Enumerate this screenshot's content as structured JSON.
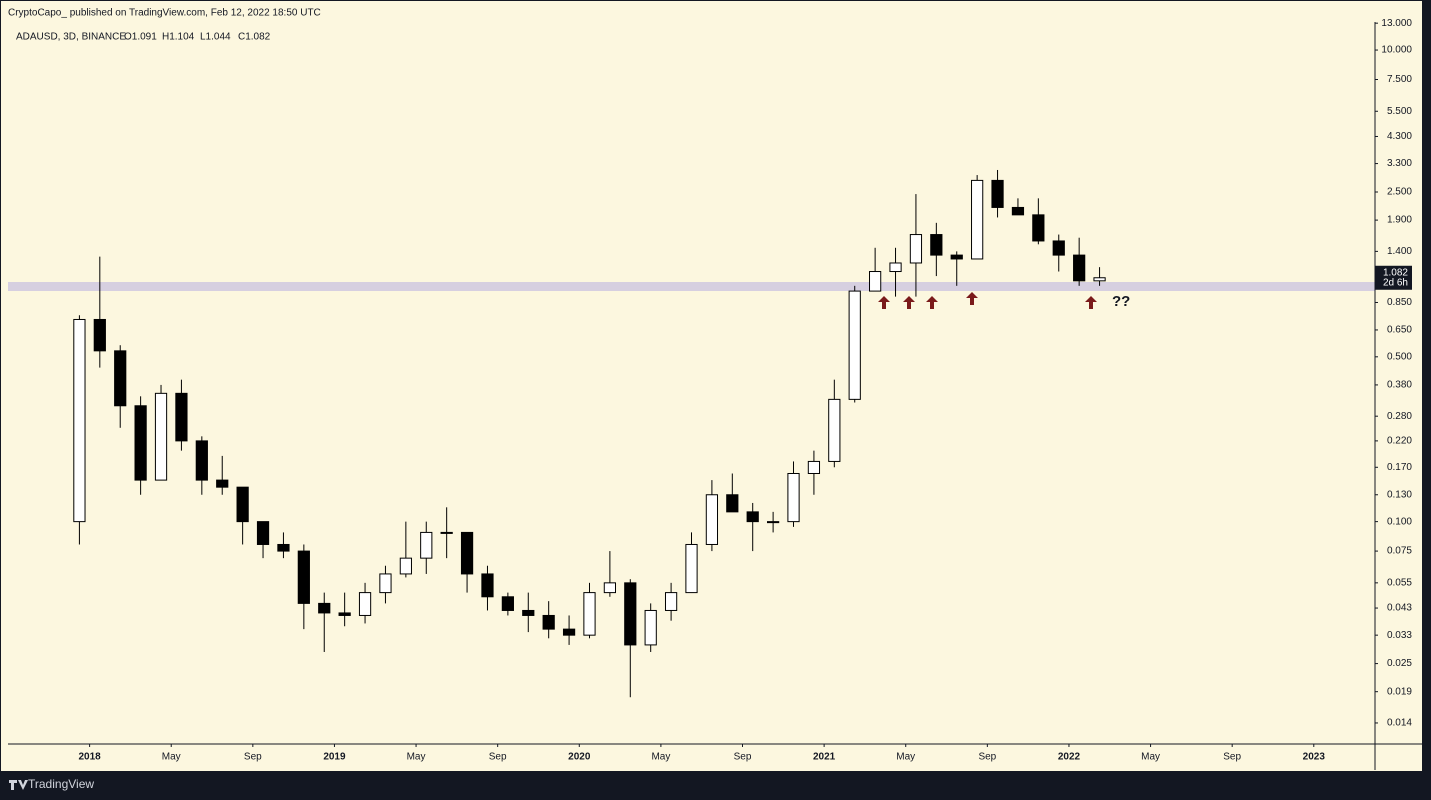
{
  "header": {
    "publisher": "CryptoCapo_ published on TradingView.com, Feb 12, 2022 18:50 UTC"
  },
  "chart_data": {
    "type": "candlestick",
    "legend": {
      "symbol": "ADAUSD, 3D, BINANCE",
      "open": "O1.091",
      "high": "H1.104",
      "low": "L1.044",
      "close": "C1.082"
    },
    "x": [
      "2017-12",
      "2018-01",
      "2018-02",
      "2018-03",
      "2018-04",
      "2018-05",
      "2018-06",
      "2018-07",
      "2018-08",
      "2018-09",
      "2018-10",
      "2018-11",
      "2018-12",
      "2019-01",
      "2019-02",
      "2019-03",
      "2019-04",
      "2019-05",
      "2019-06",
      "2019-07",
      "2019-08",
      "2019-09",
      "2019-10",
      "2019-11",
      "2019-12",
      "2020-01",
      "2020-02",
      "2020-03",
      "2020-04",
      "2020-05",
      "2020-06",
      "2020-07",
      "2020-08",
      "2020-09",
      "2020-10",
      "2020-11",
      "2020-12",
      "2021-01",
      "2021-02",
      "2021-03",
      "2021-04",
      "2021-05",
      "2021-06",
      "2021-07",
      "2021-08",
      "2021-09",
      "2021-10",
      "2021-11",
      "2021-12",
      "2022-01",
      "2022-02"
    ],
    "open": [
      0.1,
      0.72,
      0.53,
      0.31,
      0.15,
      0.35,
      0.22,
      0.15,
      0.14,
      0.1,
      0.08,
      0.075,
      0.045,
      0.041,
      0.04,
      0.05,
      0.06,
      0.07,
      0.09,
      0.09,
      0.06,
      0.048,
      0.042,
      0.04,
      0.035,
      0.033,
      0.05,
      0.055,
      0.03,
      0.042,
      0.05,
      0.08,
      0.13,
      0.11,
      0.1,
      0.1,
      0.16,
      0.18,
      0.33,
      0.95,
      1.15,
      1.25,
      1.65,
      1.35,
      1.3,
      2.8,
      2.15,
      2.0,
      1.55,
      1.35,
      1.05
    ],
    "high": [
      0.75,
      1.33,
      0.56,
      0.34,
      0.38,
      0.4,
      0.23,
      0.19,
      0.14,
      0.1,
      0.09,
      0.08,
      0.05,
      0.05,
      0.055,
      0.065,
      0.1,
      0.1,
      0.115,
      0.09,
      0.065,
      0.05,
      0.05,
      0.046,
      0.04,
      0.055,
      0.075,
      0.057,
      0.045,
      0.055,
      0.09,
      0.15,
      0.16,
      0.12,
      0.11,
      0.18,
      0.2,
      0.4,
      1.0,
      1.45,
      1.45,
      2.45,
      1.85,
      1.4,
      2.95,
      3.1,
      2.35,
      2.35,
      1.65,
      1.6,
      1.2
    ],
    "low": [
      0.08,
      0.45,
      0.25,
      0.13,
      0.15,
      0.2,
      0.13,
      0.13,
      0.08,
      0.07,
      0.07,
      0.035,
      0.028,
      0.036,
      0.037,
      0.045,
      0.058,
      0.06,
      0.07,
      0.05,
      0.042,
      0.04,
      0.034,
      0.032,
      0.03,
      0.032,
      0.048,
      0.018,
      0.028,
      0.038,
      0.05,
      0.075,
      0.11,
      0.075,
      0.09,
      0.095,
      0.13,
      0.17,
      0.32,
      0.95,
      0.9,
      0.9,
      1.1,
      1.0,
      1.3,
      1.95,
      2.05,
      1.5,
      1.15,
      1.0,
      1.0
    ],
    "close": [
      0.72,
      0.53,
      0.31,
      0.15,
      0.35,
      0.22,
      0.15,
      0.14,
      0.1,
      0.08,
      0.075,
      0.045,
      0.041,
      0.04,
      0.05,
      0.06,
      0.07,
      0.09,
      0.09,
      0.06,
      0.048,
      0.042,
      0.04,
      0.035,
      0.033,
      0.05,
      0.055,
      0.03,
      0.042,
      0.05,
      0.08,
      0.13,
      0.11,
      0.1,
      0.1,
      0.16,
      0.18,
      0.33,
      0.95,
      1.15,
      1.25,
      1.65,
      1.35,
      1.3,
      2.8,
      2.15,
      2.0,
      1.55,
      1.35,
      1.05,
      1.082
    ],
    "up_color": "#ffffff",
    "down_color": "#000000",
    "edge_color": "#000000",
    "log_scale": true,
    "grid": false,
    "xlim": [
      "2017-09",
      "2023-04"
    ],
    "xticks": [
      {
        "value": "2018-01",
        "label": "2018"
      },
      {
        "value": "2018-05",
        "label": "May"
      },
      {
        "value": "2018-09",
        "label": "Sep"
      },
      {
        "value": "2019-01",
        "label": "2019"
      },
      {
        "value": "2019-05",
        "label": "May"
      },
      {
        "value": "2019-09",
        "label": "Sep"
      },
      {
        "value": "2020-01",
        "label": "2020"
      },
      {
        "value": "2020-05",
        "label": "May"
      },
      {
        "value": "2020-09",
        "label": "Sep"
      },
      {
        "value": "2021-01",
        "label": "2021"
      },
      {
        "value": "2021-05",
        "label": "May"
      },
      {
        "value": "2021-09",
        "label": "Sep"
      },
      {
        "value": "2022-01",
        "label": "2022"
      },
      {
        "value": "2022-05",
        "label": "May"
      },
      {
        "value": "2022-09",
        "label": "Sep"
      },
      {
        "value": "2023-01",
        "label": "2023"
      }
    ],
    "ylim": [
      0.0114,
      13.15
    ],
    "yticks": [
      {
        "value": 13,
        "label": "13.000"
      },
      {
        "value": 10,
        "label": "10.000"
      },
      {
        "value": 7.5,
        "label": "7.500"
      },
      {
        "value": 5.5,
        "label": "5.500"
      },
      {
        "value": 4.3,
        "label": "4.300"
      },
      {
        "value": 3.3,
        "label": "3.300"
      },
      {
        "value": 2.5,
        "label": "2.500"
      },
      {
        "value": 1.9,
        "label": "1.900"
      },
      {
        "value": 1.4,
        "label": "1.400"
      },
      {
        "value": 0.85,
        "label": "0.850"
      },
      {
        "value": 0.65,
        "label": "0.650"
      },
      {
        "value": 0.5,
        "label": "0.500"
      },
      {
        "value": 0.38,
        "label": "0.380"
      },
      {
        "value": 0.28,
        "label": "0.280"
      },
      {
        "value": 0.22,
        "label": "0.220"
      },
      {
        "value": 0.17,
        "label": "0.170"
      },
      {
        "value": 0.13,
        "label": "0.130"
      },
      {
        "value": 0.1,
        "label": "0.100"
      },
      {
        "value": 0.075,
        "label": "0.075"
      },
      {
        "value": 0.055,
        "label": "0.055"
      },
      {
        "value": 0.043,
        "label": "0.043"
      },
      {
        "value": 0.033,
        "label": "0.033"
      },
      {
        "value": 0.025,
        "label": "0.025"
      },
      {
        "value": 0.019,
        "label": "0.019"
      },
      {
        "value": 0.014,
        "label": "0.014"
      }
    ],
    "price_tag": {
      "label": "1.082",
      "countdown": "2d 6h"
    },
    "annotation": "??"
  },
  "footer": {
    "brand": "TradingView"
  }
}
